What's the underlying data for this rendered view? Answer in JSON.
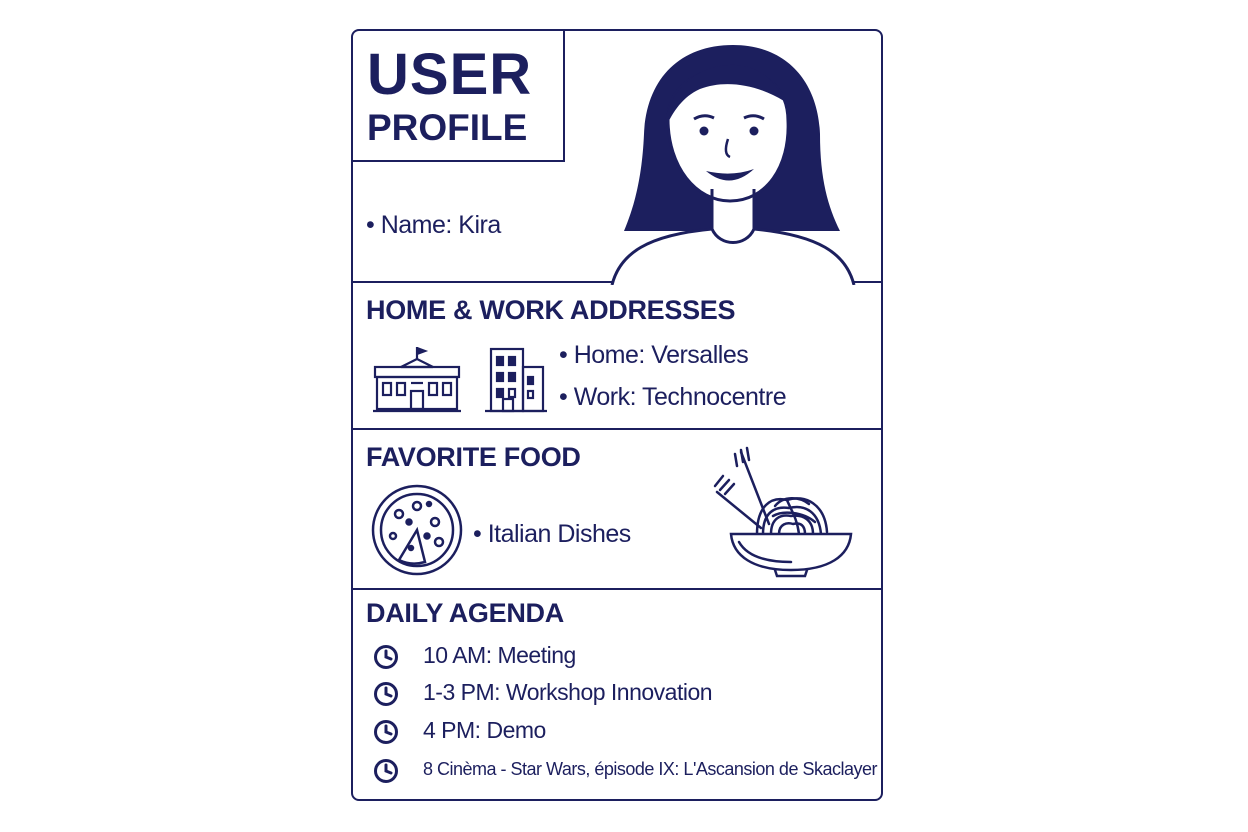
{
  "profile": {
    "title_line1": "USER",
    "title_line2": "PROFILE",
    "name_text": "• Name: Kira"
  },
  "addresses": {
    "heading": "HOME & WORK ADDRESSES",
    "home_text": "• Home: Versalles",
    "work_text": "• Work: Technocentre"
  },
  "food": {
    "heading": "FAVORITE FOOD",
    "item_text": "• Italian Dishes"
  },
  "agenda": {
    "heading": "DAILY AGENDA",
    "items": [
      {
        "text": "10 AM: Meeting"
      },
      {
        "text": "1-3 PM: Workshop Innovation"
      },
      {
        "text": "4 PM: Demo"
      },
      {
        "text": "8 Cinèma - Star Wars, épisode IX: L'Ascansion de Skaclayer"
      }
    ]
  },
  "icons": {
    "avatar": "woman-avatar-icon",
    "home": "palace-building-icon",
    "work": "office-building-icon",
    "pizza": "pizza-icon",
    "pasta": "pasta-bowl-icon",
    "clock": "clock-icon"
  },
  "colors": {
    "ink": "#1c1f5e",
    "background": "#ffffff"
  }
}
